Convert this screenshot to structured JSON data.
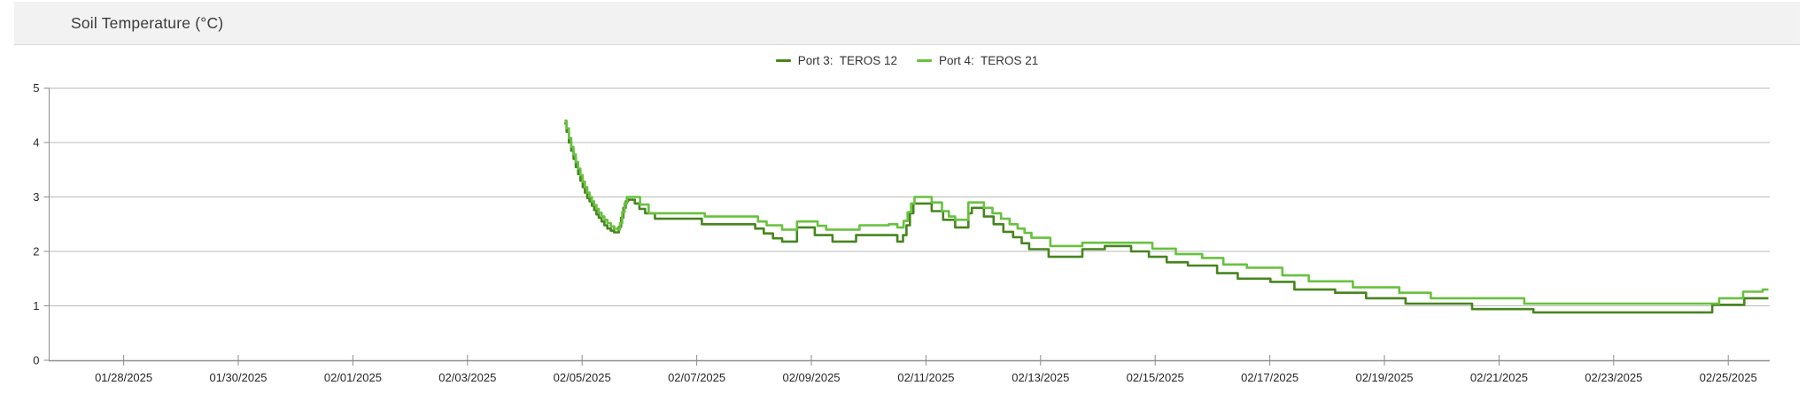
{
  "header": {
    "title": "Soil Temperature (°C)"
  },
  "legend": {
    "items": [
      {
        "id": "port-3",
        "label": "Port 3:  TEROS 12",
        "color": "#47851f"
      },
      {
        "id": "port-4",
        "label": "Port 4:  TEROS 21",
        "color": "#68c13f"
      }
    ]
  },
  "colors": {
    "header_bg": "#f2f2f2",
    "header_border": "#d9d9d9",
    "grid": "#bababa",
    "axis": "#8e8e8e",
    "tick_label": "#262626",
    "title_text": "#3b3b3b",
    "legend_text": "#333333",
    "port3_line": "#47851f",
    "port4_line": "#68c13f"
  },
  "chart_data": {
    "type": "line",
    "title": "Soil Temperature (°C)",
    "interpolation": "step-after",
    "grid": "horizontal",
    "legend_position": "top-center",
    "x_unit": "days since 2025-01-26 00:00",
    "x_domain": [
      0.7,
      30.73
    ],
    "ylim": [
      0,
      5
    ],
    "y_ticks": [
      0,
      1,
      2,
      3,
      4,
      5
    ],
    "x_ticks": [
      {
        "d": 2,
        "label": "01/28/2025"
      },
      {
        "d": 4,
        "label": "01/30/2025"
      },
      {
        "d": 6,
        "label": "02/01/2025"
      },
      {
        "d": 8,
        "label": "02/03/2025"
      },
      {
        "d": 10,
        "label": "02/05/2025"
      },
      {
        "d": 12,
        "label": "02/07/2025"
      },
      {
        "d": 14,
        "label": "02/09/2025"
      },
      {
        "d": 16,
        "label": "02/11/2025"
      },
      {
        "d": 18,
        "label": "02/13/2025"
      },
      {
        "d": 20,
        "label": "02/15/2025"
      },
      {
        "d": 22,
        "label": "02/17/2025"
      },
      {
        "d": 24,
        "label": "02/19/2025"
      },
      {
        "d": 26,
        "label": "02/21/2025"
      },
      {
        "d": 28,
        "label": "02/23/2025"
      },
      {
        "d": 30,
        "label": "02/25/2025"
      }
    ],
    "series": [
      {
        "name": "Port 3:  TEROS 12",
        "color": "#47851f",
        "points": [
          [
            9.69,
            4.35
          ],
          [
            9.73,
            4.2
          ],
          [
            9.77,
            4.0
          ],
          [
            9.81,
            3.85
          ],
          [
            9.85,
            3.7
          ],
          [
            9.89,
            3.55
          ],
          [
            9.93,
            3.42
          ],
          [
            9.97,
            3.3
          ],
          [
            10.01,
            3.18
          ],
          [
            10.05,
            3.08
          ],
          [
            10.09,
            2.98
          ],
          [
            10.13,
            2.92
          ],
          [
            10.17,
            2.84
          ],
          [
            10.21,
            2.76
          ],
          [
            10.25,
            2.68
          ],
          [
            10.29,
            2.62
          ],
          [
            10.34,
            2.55
          ],
          [
            10.39,
            2.48
          ],
          [
            10.44,
            2.42
          ],
          [
            10.5,
            2.38
          ],
          [
            10.56,
            2.35
          ],
          [
            10.64,
            2.45
          ],
          [
            10.68,
            2.62
          ],
          [
            10.72,
            2.8
          ],
          [
            10.76,
            2.92
          ],
          [
            10.8,
            2.95
          ],
          [
            10.92,
            2.88
          ],
          [
            11.0,
            2.78
          ],
          [
            11.1,
            2.7
          ],
          [
            11.27,
            2.6
          ],
          [
            12.09,
            2.5
          ],
          [
            13.02,
            2.42
          ],
          [
            13.17,
            2.33
          ],
          [
            13.33,
            2.24
          ],
          [
            13.49,
            2.18
          ],
          [
            13.75,
            2.44
          ],
          [
            14.06,
            2.3
          ],
          [
            14.37,
            2.18
          ],
          [
            14.78,
            2.3
          ],
          [
            15.5,
            2.18
          ],
          [
            15.6,
            2.3
          ],
          [
            15.66,
            2.48
          ],
          [
            15.72,
            2.7
          ],
          [
            15.78,
            2.88
          ],
          [
            16.1,
            2.74
          ],
          [
            16.3,
            2.58
          ],
          [
            16.51,
            2.44
          ],
          [
            16.74,
            2.7
          ],
          [
            16.8,
            2.8
          ],
          [
            17.01,
            2.64
          ],
          [
            17.18,
            2.5
          ],
          [
            17.35,
            2.36
          ],
          [
            17.52,
            2.26
          ],
          [
            17.67,
            2.15
          ],
          [
            17.8,
            2.04
          ],
          [
            18.14,
            1.9
          ],
          [
            18.73,
            2.04
          ],
          [
            19.12,
            2.1
          ],
          [
            19.58,
            2.0
          ],
          [
            19.89,
            1.9
          ],
          [
            20.2,
            1.8
          ],
          [
            20.57,
            1.74
          ],
          [
            21.08,
            1.6
          ],
          [
            21.44,
            1.5
          ],
          [
            22.01,
            1.44
          ],
          [
            22.43,
            1.3
          ],
          [
            23.14,
            1.24
          ],
          [
            23.68,
            1.14
          ],
          [
            24.37,
            1.04
          ],
          [
            25.53,
            0.94
          ],
          [
            26.6,
            0.88
          ],
          [
            29.72,
            1.02
          ],
          [
            30.28,
            1.14
          ],
          [
            30.7,
            1.14
          ]
        ]
      },
      {
        "name": "Port 4:  TEROS 21",
        "color": "#68c13f",
        "points": [
          [
            9.69,
            4.4
          ],
          [
            9.73,
            4.26
          ],
          [
            9.77,
            4.08
          ],
          [
            9.81,
            3.92
          ],
          [
            9.85,
            3.78
          ],
          [
            9.89,
            3.64
          ],
          [
            9.93,
            3.52
          ],
          [
            9.97,
            3.4
          ],
          [
            10.01,
            3.28
          ],
          [
            10.05,
            3.18
          ],
          [
            10.09,
            3.08
          ],
          [
            10.13,
            3.0
          ],
          [
            10.17,
            2.92
          ],
          [
            10.21,
            2.85
          ],
          [
            10.25,
            2.78
          ],
          [
            10.29,
            2.71
          ],
          [
            10.34,
            2.64
          ],
          [
            10.39,
            2.58
          ],
          [
            10.44,
            2.52
          ],
          [
            10.5,
            2.46
          ],
          [
            10.56,
            2.42
          ],
          [
            10.62,
            2.4
          ],
          [
            10.66,
            2.52
          ],
          [
            10.7,
            2.72
          ],
          [
            10.74,
            2.88
          ],
          [
            10.78,
            3.0
          ],
          [
            11.01,
            2.86
          ],
          [
            11.16,
            2.7
          ],
          [
            12.14,
            2.64
          ],
          [
            13.07,
            2.55
          ],
          [
            13.22,
            2.48
          ],
          [
            13.49,
            2.4
          ],
          [
            13.75,
            2.55
          ],
          [
            14.11,
            2.47
          ],
          [
            14.26,
            2.4
          ],
          [
            14.84,
            2.48
          ],
          [
            15.35,
            2.5
          ],
          [
            15.5,
            2.44
          ],
          [
            15.61,
            2.56
          ],
          [
            15.68,
            2.72
          ],
          [
            15.74,
            2.88
          ],
          [
            15.8,
            3.0
          ],
          [
            16.1,
            2.9
          ],
          [
            16.28,
            2.74
          ],
          [
            16.4,
            2.64
          ],
          [
            16.51,
            2.58
          ],
          [
            16.74,
            2.9
          ],
          [
            17.01,
            2.8
          ],
          [
            17.16,
            2.7
          ],
          [
            17.31,
            2.6
          ],
          [
            17.46,
            2.5
          ],
          [
            17.6,
            2.42
          ],
          [
            17.72,
            2.34
          ],
          [
            17.84,
            2.25
          ],
          [
            18.17,
            2.1
          ],
          [
            18.73,
            2.16
          ],
          [
            19.95,
            2.05
          ],
          [
            20.36,
            1.95
          ],
          [
            20.82,
            1.88
          ],
          [
            21.19,
            1.76
          ],
          [
            21.6,
            1.7
          ],
          [
            22.22,
            1.56
          ],
          [
            22.68,
            1.45
          ],
          [
            23.45,
            1.34
          ],
          [
            24.26,
            1.24
          ],
          [
            24.81,
            1.14
          ],
          [
            26.44,
            1.04
          ],
          [
            29.84,
            1.14
          ],
          [
            30.26,
            1.26
          ],
          [
            30.6,
            1.3
          ],
          [
            30.7,
            1.3
          ]
        ]
      }
    ]
  }
}
